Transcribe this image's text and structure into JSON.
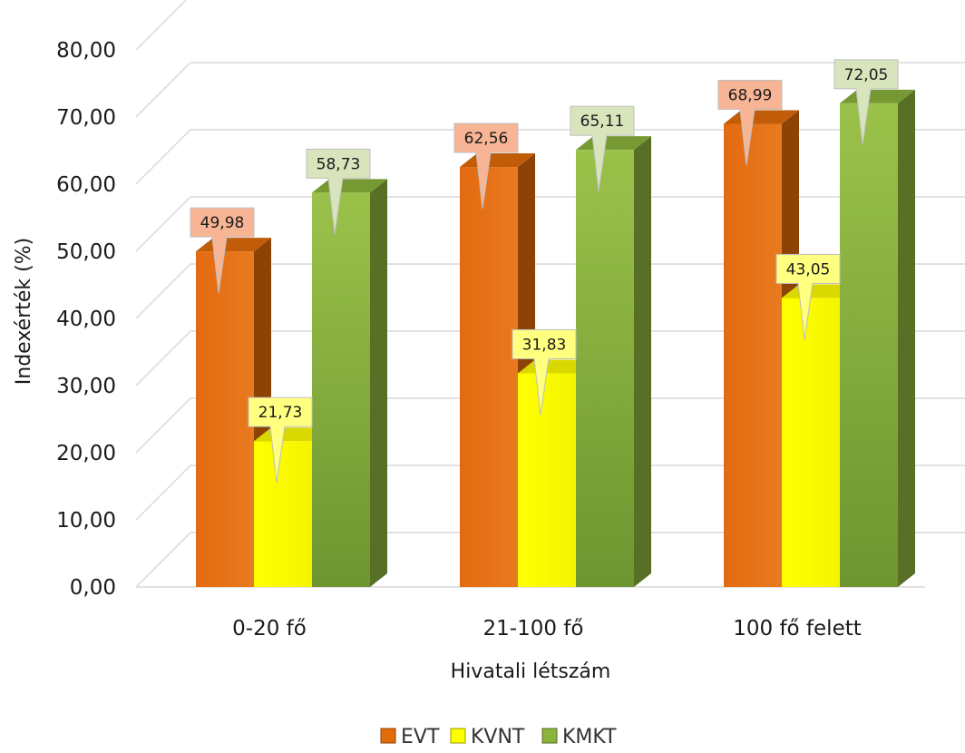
{
  "chart_data": {
    "type": "bar",
    "ylabel": "Indexérték (%)",
    "xlabel": "Hivatali létszám",
    "categories": [
      "0-20 fő",
      "21-100 fő",
      "100 fő felett"
    ],
    "series": [
      {
        "name": "EVT",
        "values": [
          49.98,
          62.56,
          68.99
        ],
        "value_labels": [
          "49,98",
          "62,56",
          "68,99"
        ],
        "color": "#e36c0a",
        "label_color": "#f8b595"
      },
      {
        "name": "KVNT",
        "values": [
          21.73,
          31.83,
          43.05
        ],
        "value_labels": [
          "21,73",
          "31,83",
          "43,05"
        ],
        "color": "#ffff00",
        "label_color": "#ffff80"
      },
      {
        "name": "KMKT",
        "values": [
          58.73,
          65.11,
          72.05
        ],
        "value_labels": [
          "58,73",
          "65,11",
          "72,05"
        ],
        "color": "#8cb43c",
        "label_color": "#d8e4bc"
      }
    ],
    "ylim": [
      0,
      80
    ],
    "yticks": [
      "0,00",
      "10,00",
      "20,00",
      "30,00",
      "40,00",
      "50,00",
      "60,00",
      "70,00",
      "80,00"
    ],
    "grid": true,
    "legend": "bottom"
  }
}
